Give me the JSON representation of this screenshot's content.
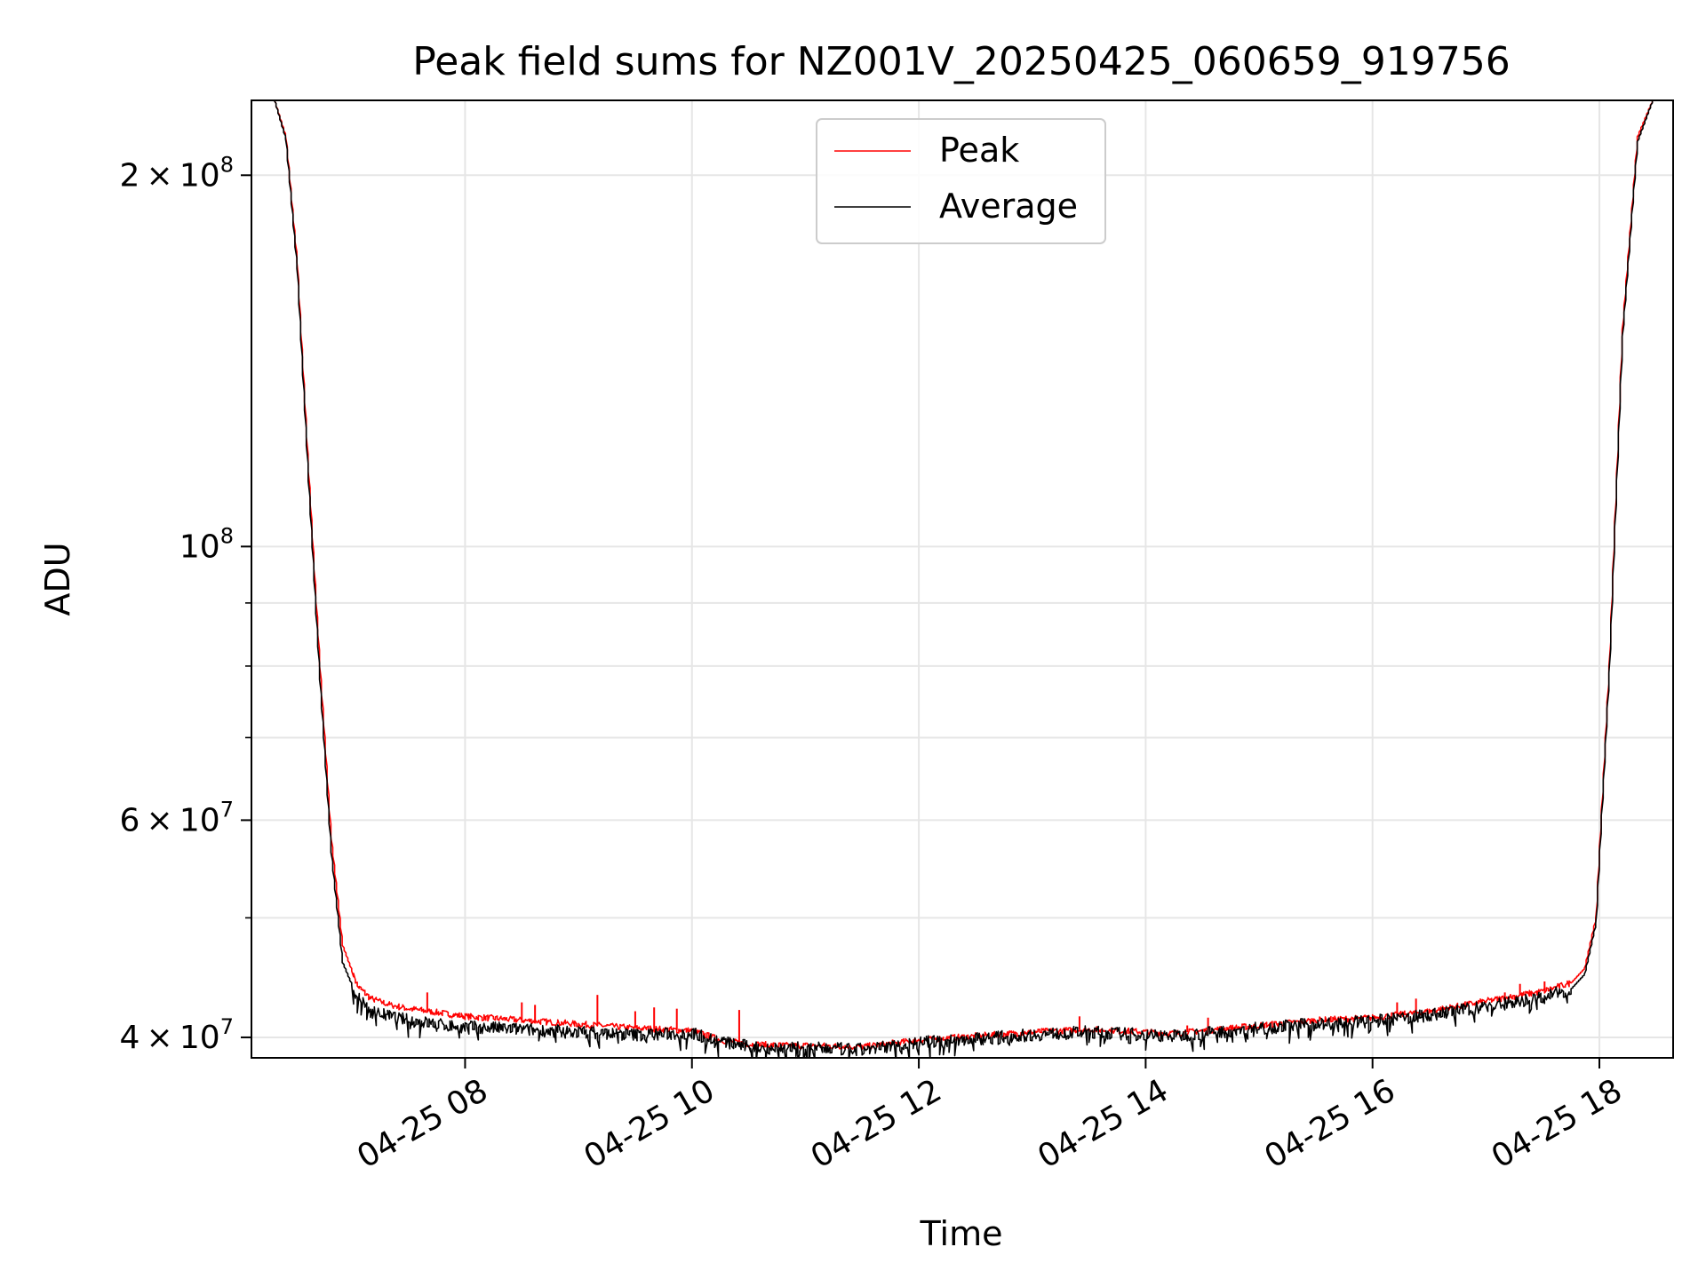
{
  "chart_data": {
    "type": "line",
    "title": "Peak field sums for NZ001V_20250425_060659_919756",
    "xlabel": "Time",
    "ylabel": "ADU",
    "y_scale": "log",
    "ylim": [
      38500000,
      230000000
    ],
    "xlim": [
      "2025-04-25 06:07",
      "2025-04-25 18:39"
    ],
    "grid": true,
    "legend_position": "top-center",
    "x_ticks": [
      {
        "time": "2025-04-25 08:00",
        "label": "04-25 08"
      },
      {
        "time": "2025-04-25 10:00",
        "label": "04-25 10"
      },
      {
        "time": "2025-04-25 12:00",
        "label": "04-25 12"
      },
      {
        "time": "2025-04-25 14:00",
        "label": "04-25 14"
      },
      {
        "time": "2025-04-25 16:00",
        "label": "04-25 16"
      },
      {
        "time": "2025-04-25 18:00",
        "label": "04-25 18"
      }
    ],
    "y_ticks": [
      {
        "value": 40000000,
        "mantissa": "4",
        "exp": "7"
      },
      {
        "value": 60000000,
        "mantissa": "6",
        "exp": "7"
      },
      {
        "value": 100000000,
        "mantissa": "",
        "exp": "8"
      },
      {
        "value": 200000000,
        "mantissa": "2",
        "exp": "8"
      }
    ],
    "y_minor_ticks": [
      50000000,
      70000000,
      80000000,
      90000000
    ],
    "series": [
      {
        "name": "Peak",
        "color": "#ff0000",
        "x": [
          "2025-04-25 06:07",
          "2025-04-25 06:19",
          "2025-04-25 06:25",
          "2025-04-25 06:31",
          "2025-04-25 06:37",
          "2025-04-25 06:43",
          "2025-04-25 06:49",
          "2025-04-25 06:55",
          "2025-04-25 07:03",
          "2025-04-25 07:10",
          "2025-04-25 07:20",
          "2025-04-25 07:30",
          "2025-04-25 07:40",
          "2025-04-25 07:50",
          "2025-04-25 08:00",
          "2025-04-25 08:30",
          "2025-04-25 09:00",
          "2025-04-25 09:30",
          "2025-04-25 10:00",
          "2025-04-25 10:15",
          "2025-04-25 10:30",
          "2025-04-25 10:45",
          "2025-04-25 11:00",
          "2025-04-25 11:30",
          "2025-04-25 12:00",
          "2025-04-25 12:30",
          "2025-04-25 13:00",
          "2025-04-25 13:30",
          "2025-04-25 14:00",
          "2025-04-25 14:15",
          "2025-04-25 14:30",
          "2025-04-25 15:00",
          "2025-04-25 15:30",
          "2025-04-25 16:00",
          "2025-04-25 16:30",
          "2025-04-25 17:00",
          "2025-04-25 17:30",
          "2025-04-25 17:45",
          "2025-04-25 17:52",
          "2025-04-25 17:58",
          "2025-04-25 18:05",
          "2025-04-25 18:12",
          "2025-04-25 18:20",
          "2025-04-25 18:28",
          "2025-04-25 18:39"
        ],
        "values": [
          230000000,
          230000000,
          215000000,
          170000000,
          115000000,
          80000000,
          58000000,
          47500000,
          44000000,
          43000000,
          42500000,
          42200000,
          42000000,
          41800000,
          41600000,
          41300000,
          41000000,
          40700000,
          40500000,
          39800000,
          39500000,
          39400000,
          39400000,
          39300000,
          39800000,
          40100000,
          40400000,
          40600000,
          40400000,
          40300000,
          40500000,
          40900000,
          41300000,
          41500000,
          42000000,
          42800000,
          43600000,
          44300000,
          45500000,
          50000000,
          80000000,
          150000000,
          215000000,
          230000000,
          230000000
        ],
        "spikes": [
          {
            "time": "2025-04-25 07:40",
            "value": 43500000
          },
          {
            "time": "2025-04-25 08:30",
            "value": 42700000
          },
          {
            "time": "2025-04-25 08:37",
            "value": 42500000
          },
          {
            "time": "2025-04-25 09:10",
            "value": 43300000
          },
          {
            "time": "2025-04-25 09:30",
            "value": 42000000
          },
          {
            "time": "2025-04-25 09:40",
            "value": 42300000
          },
          {
            "time": "2025-04-25 09:52",
            "value": 42200000
          },
          {
            "time": "2025-04-25 10:25",
            "value": 42100000
          },
          {
            "time": "2025-04-25 13:25",
            "value": 41600000
          },
          {
            "time": "2025-04-25 14:22",
            "value": 40900000
          },
          {
            "time": "2025-04-25 14:33",
            "value": 41500000
          },
          {
            "time": "2025-04-25 16:13",
            "value": 42700000
          },
          {
            "time": "2025-04-25 16:23",
            "value": 43000000
          },
          {
            "time": "2025-04-25 17:10",
            "value": 43500000
          },
          {
            "time": "2025-04-25 17:18",
            "value": 44200000
          },
          {
            "time": "2025-04-25 17:31",
            "value": 44400000
          }
        ]
      },
      {
        "name": "Average",
        "color": "#000000",
        "x": [
          "2025-04-25 06:07",
          "2025-04-25 06:19",
          "2025-04-25 06:25",
          "2025-04-25 06:31",
          "2025-04-25 06:37",
          "2025-04-25 06:43",
          "2025-04-25 06:49",
          "2025-04-25 06:55",
          "2025-04-25 07:03",
          "2025-04-25 07:10",
          "2025-04-25 07:20",
          "2025-04-25 07:30",
          "2025-04-25 07:40",
          "2025-04-25 07:50",
          "2025-04-25 08:00",
          "2025-04-25 08:30",
          "2025-04-25 09:00",
          "2025-04-25 09:30",
          "2025-04-25 10:00",
          "2025-04-25 10:15",
          "2025-04-25 10:30",
          "2025-04-25 10:45",
          "2025-04-25 11:00",
          "2025-04-25 11:30",
          "2025-04-25 12:00",
          "2025-04-25 12:30",
          "2025-04-25 13:00",
          "2025-04-25 13:30",
          "2025-04-25 14:00",
          "2025-04-25 14:15",
          "2025-04-25 14:30",
          "2025-04-25 15:00",
          "2025-04-25 15:30",
          "2025-04-25 16:00",
          "2025-04-25 16:30",
          "2025-04-25 17:00",
          "2025-04-25 17:30",
          "2025-04-25 17:45",
          "2025-04-25 17:52",
          "2025-04-25 17:58",
          "2025-04-25 18:05",
          "2025-04-25 18:12",
          "2025-04-25 18:20",
          "2025-04-25 18:28",
          "2025-04-25 18:39"
        ],
        "values": [
          230000000,
          230000000,
          214000000,
          168000000,
          113000000,
          78000000,
          56500000,
          46000000,
          43000000,
          42000000,
          41600000,
          41300000,
          41100000,
          40900000,
          40800000,
          40600000,
          40400000,
          40200000,
          40300000,
          39700000,
          39300000,
          39200000,
          39200000,
          39100000,
          39600000,
          39900000,
          40200000,
          40400000,
          40200000,
          40100000,
          40300000,
          40700000,
          41000000,
          41200000,
          41700000,
          42400000,
          43100000,
          43800000,
          45000000,
          49500000,
          79000000,
          148000000,
          213000000,
          230000000,
          230000000
        ]
      }
    ]
  }
}
